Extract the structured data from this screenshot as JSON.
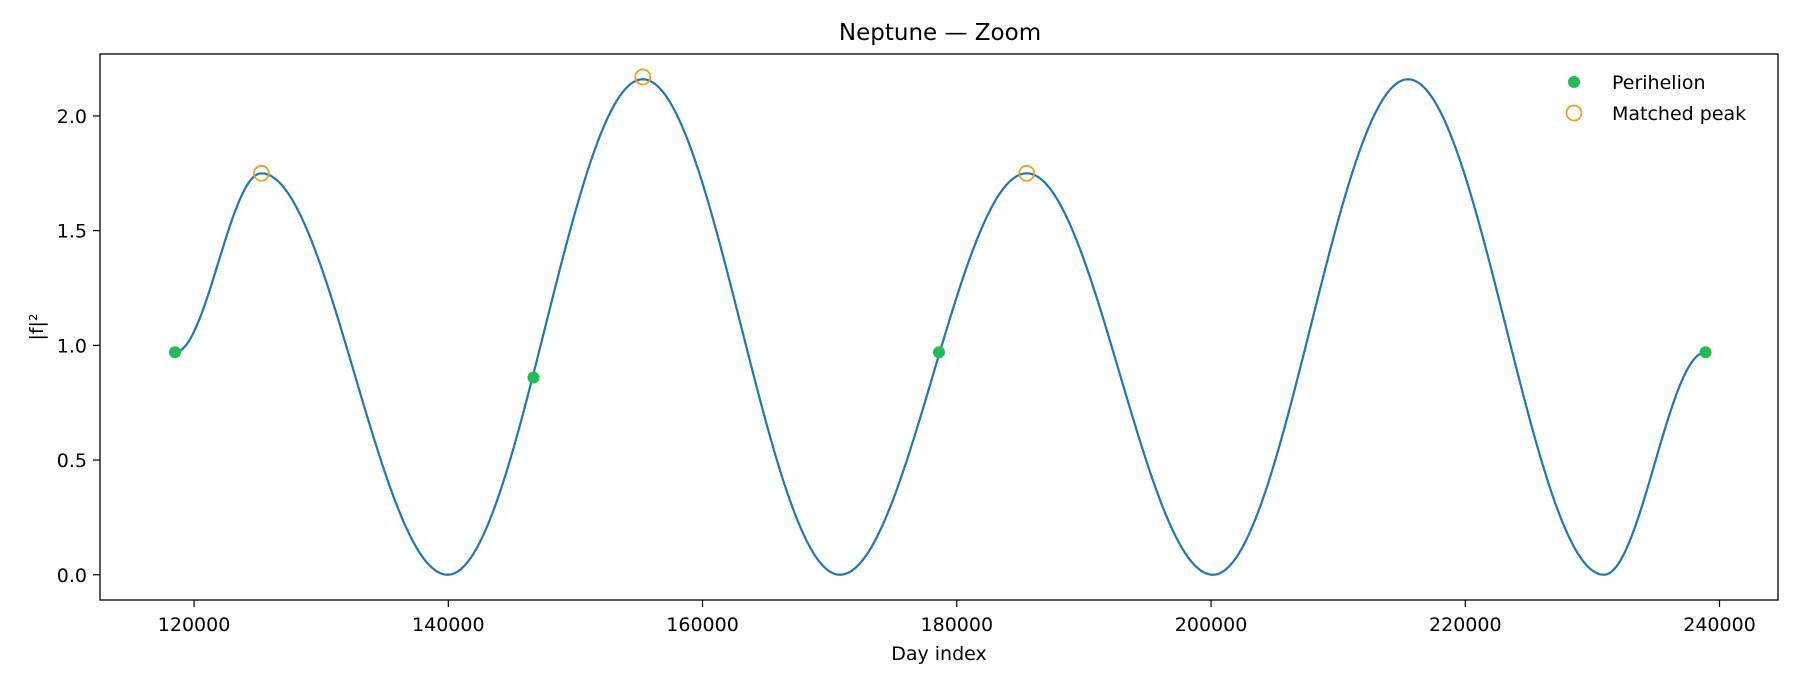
{
  "chart_data": {
    "type": "line",
    "title": "Neptune — Zoom",
    "xlabel": "Day index",
    "ylabel": "|f|²",
    "xlim": [
      112600,
      244600
    ],
    "ylim": [
      -0.11,
      2.27
    ],
    "xticks": [
      120000,
      140000,
      160000,
      180000,
      200000,
      220000,
      240000
    ],
    "yticks": [
      0.0,
      0.5,
      1.0,
      1.5,
      2.0
    ],
    "ytick_labels": [
      "0.0",
      "0.5",
      "1.0",
      "1.5",
      "2.0"
    ],
    "grid": false,
    "legend_position": "top-right",
    "curve": {
      "color": "#1f77b4",
      "x_start": 118500,
      "x_end": 238900,
      "troughs": [
        {
          "x": 118500,
          "y": 0.97
        },
        {
          "x": 139950,
          "y": 0.0
        },
        {
          "x": 170800,
          "y": 0.0
        },
        {
          "x": 200150,
          "y": 0.0
        },
        {
          "x": 230900,
          "y": 0.0
        },
        {
          "x": 238900,
          "y": 0.97
        }
      ],
      "peaks": [
        {
          "x": 125300,
          "y": 1.75
        },
        {
          "x": 155300,
          "y": 2.16
        },
        {
          "x": 185500,
          "y": 1.75
        },
        {
          "x": 215500,
          "y": 2.16
        }
      ]
    },
    "series": [
      {
        "name": "Perihelion",
        "marker": "filled-circle",
        "color": "#22bb55",
        "points": [
          {
            "x": 118500,
            "y": 0.97
          },
          {
            "x": 146700,
            "y": 0.86
          },
          {
            "x": 178600,
            "y": 0.97
          },
          {
            "x": 238900,
            "y": 0.97
          }
        ]
      },
      {
        "name": "Matched peak",
        "marker": "open-circle",
        "color": "#f0a020",
        "points": [
          {
            "x": 125300,
            "y": 1.75
          },
          {
            "x": 155300,
            "y": 2.17
          },
          {
            "x": 185500,
            "y": 1.75
          }
        ]
      }
    ]
  }
}
